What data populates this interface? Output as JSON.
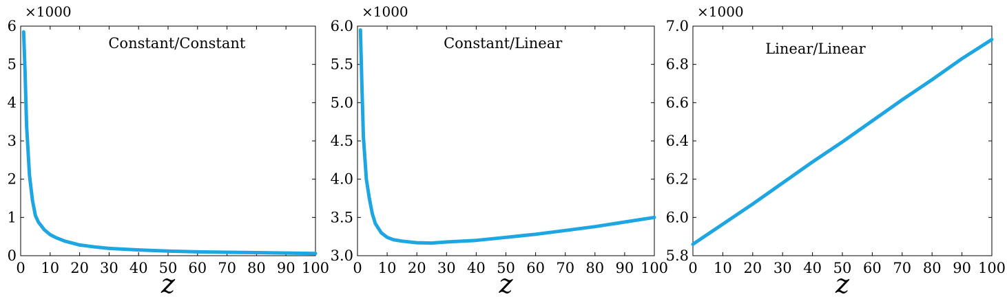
{
  "chart_data": [
    {
      "type": "line",
      "title": "Constant/Constant",
      "xlabel": "z",
      "ylabel": "",
      "y_multiplier_label": "×1000",
      "xlim": [
        0,
        100
      ],
      "ylim": [
        0,
        6
      ],
      "xticks": [
        0,
        10,
        20,
        30,
        40,
        50,
        60,
        70,
        80,
        90,
        100
      ],
      "yticks": [
        0,
        1,
        2,
        3,
        4,
        5,
        6
      ],
      "ytick_labels": [
        "0",
        "1",
        "2",
        "3",
        "4",
        "5",
        "6"
      ],
      "grid": false,
      "color": "#1ea6e2",
      "series": [
        {
          "x": [
            1,
            1.5,
            2,
            3,
            4,
            5,
            6,
            8,
            10,
            12,
            15,
            20,
            25,
            30,
            40,
            50,
            60,
            70,
            80,
            90,
            100
          ],
          "values": [
            5.85,
            4.8,
            3.4,
            2.1,
            1.45,
            1.05,
            0.88,
            0.68,
            0.55,
            0.47,
            0.38,
            0.28,
            0.23,
            0.19,
            0.15,
            0.12,
            0.1,
            0.09,
            0.08,
            0.07,
            0.06
          ]
        }
      ]
    },
    {
      "type": "line",
      "title": "Constant/Linear",
      "xlabel": "z",
      "ylabel": "",
      "y_multiplier_label": "×1000",
      "xlim": [
        0,
        100
      ],
      "ylim": [
        3.0,
        6.0
      ],
      "xticks": [
        0,
        10,
        20,
        30,
        40,
        50,
        60,
        70,
        80,
        90,
        100
      ],
      "yticks": [
        3.0,
        3.5,
        4.0,
        4.5,
        5.0,
        5.5,
        6.0
      ],
      "ytick_labels": [
        "3.0",
        "3.5",
        "4.0",
        "4.5",
        "5.0",
        "5.5",
        "6.0"
      ],
      "grid": false,
      "color": "#1ea6e2",
      "series": [
        {
          "x": [
            1,
            1.5,
            2,
            3,
            4,
            5,
            6,
            8,
            10,
            12,
            15,
            20,
            25,
            30,
            40,
            50,
            60,
            70,
            80,
            90,
            100
          ],
          "values": [
            5.95,
            5.2,
            4.55,
            4.0,
            3.75,
            3.55,
            3.42,
            3.3,
            3.24,
            3.21,
            3.19,
            3.17,
            3.165,
            3.18,
            3.2,
            3.24,
            3.28,
            3.33,
            3.38,
            3.44,
            3.5
          ]
        }
      ]
    },
    {
      "type": "line",
      "title": "Linear/Linear",
      "xlabel": "z",
      "ylabel": "",
      "y_multiplier_label": "×1000",
      "xlim": [
        0,
        100
      ],
      "ylim": [
        5.8,
        7.0
      ],
      "xticks": [
        0,
        10,
        20,
        30,
        40,
        50,
        60,
        70,
        80,
        90,
        100
      ],
      "yticks": [
        5.8,
        6.0,
        6.2,
        6.4,
        6.6,
        6.8,
        7.0
      ],
      "ytick_labels": [
        "5.8",
        "6.0",
        "6.2",
        "6.4",
        "6.6",
        "6.8",
        "7.0"
      ],
      "grid": false,
      "color": "#1ea6e2",
      "series": [
        {
          "x": [
            0,
            10,
            20,
            30,
            40,
            50,
            60,
            70,
            80,
            90,
            100
          ],
          "values": [
            5.86,
            5.965,
            6.07,
            6.18,
            6.29,
            6.395,
            6.505,
            6.615,
            6.72,
            6.83,
            6.93
          ]
        }
      ]
    }
  ]
}
